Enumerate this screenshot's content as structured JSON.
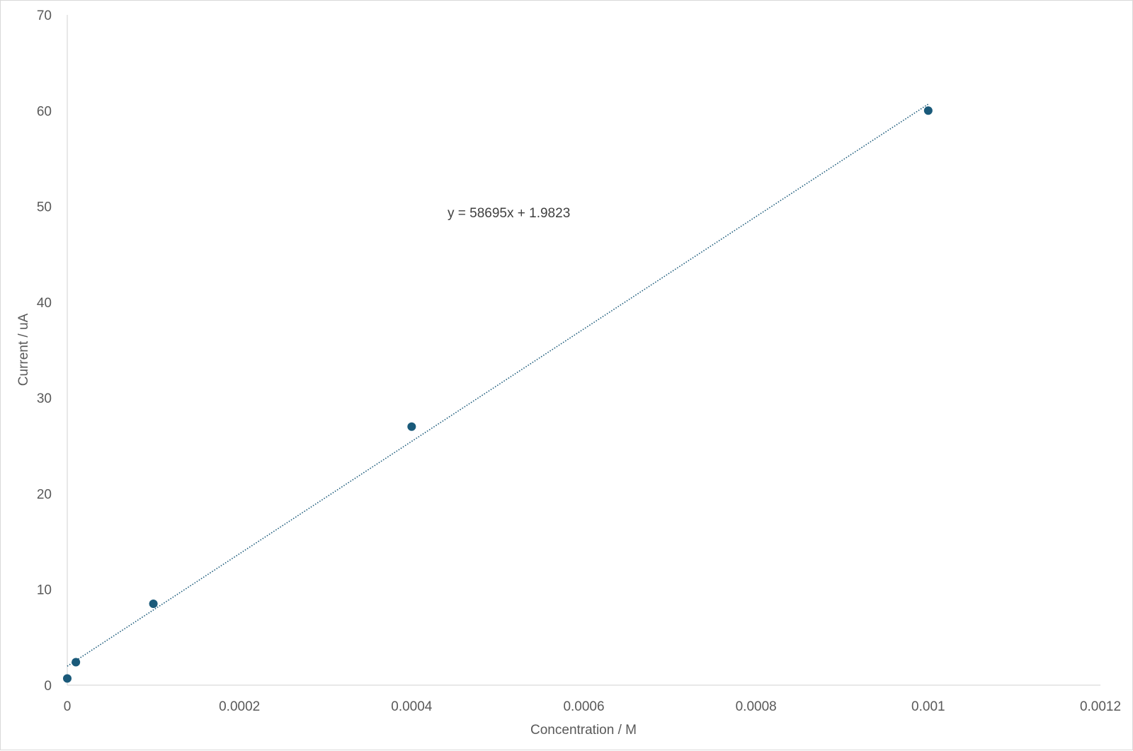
{
  "chart_data": {
    "type": "scatter",
    "title": "",
    "xlabel": "Concentration / M",
    "ylabel": "Current / uA",
    "xlim": [
      0,
      0.0012
    ],
    "ylim": [
      0,
      70
    ],
    "x_ticks": [
      0,
      0.0002,
      0.0004,
      0.0006,
      0.0008,
      0.001,
      0.0012
    ],
    "x_tick_labels": [
      "0",
      "0.0002",
      "0.0004",
      "0.0006",
      "0.0008",
      "0.001",
      "0.0012"
    ],
    "y_ticks": [
      0,
      10,
      20,
      30,
      40,
      50,
      60,
      70
    ],
    "y_tick_labels": [
      "0",
      "10",
      "20",
      "30",
      "40",
      "50",
      "60",
      "70"
    ],
    "grid": false,
    "series": [
      {
        "color": "#1a5a7a",
        "x": [
          0,
          1e-05,
          0.0001,
          0.0004,
          0.001
        ],
        "y": [
          0.7,
          2.4,
          8.5,
          27,
          60
        ]
      }
    ],
    "trendline": {
      "type": "linear",
      "slope": 58695,
      "intercept": 1.9823,
      "x_range": [
        0,
        0.001
      ],
      "style": "dotted",
      "color": "#1a5a7a",
      "equation_label": "y = 58695x + 1.9823"
    }
  }
}
